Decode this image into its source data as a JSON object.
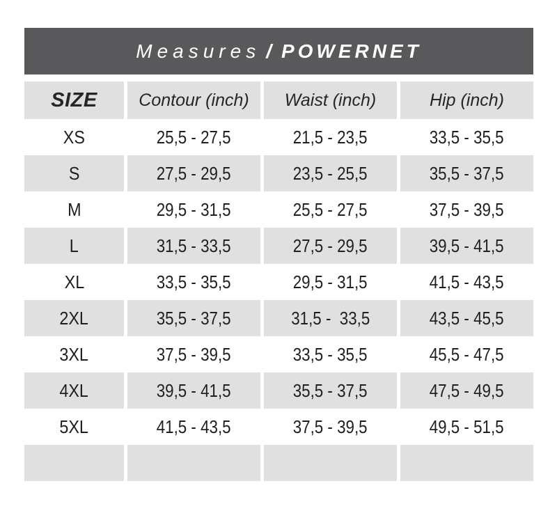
{
  "header_bar": {
    "label_left": "Measures",
    "separator": "/",
    "label_right": "POWERNET"
  },
  "table": {
    "columns": [
      "SIZE",
      "Contour (inch)",
      "Waist (inch)",
      "Hip (inch)"
    ],
    "rows": [
      {
        "size": "XS",
        "contour": "25,5 - 27,5",
        "waist": "21,5 - 23,5",
        "hip": "33,5 - 35,5"
      },
      {
        "size": "S",
        "contour": "27,5 - 29,5",
        "waist": "23,5 - 25,5",
        "hip": "35,5 - 37,5"
      },
      {
        "size": "M",
        "contour": "29,5 - 31,5",
        "waist": "25,5 - 27,5",
        "hip": "37,5 - 39,5"
      },
      {
        "size": "L",
        "contour": "31,5 - 33,5",
        "waist": "27,5 - 29,5",
        "hip": "39,5 - 41,5"
      },
      {
        "size": "XL",
        "contour": "33,5 - 35,5",
        "waist": "29,5 - 31,5",
        "hip": "41,5 - 43,5"
      },
      {
        "size": "2XL",
        "contour": "35,5 - 37,5",
        "waist": "31,5 -  33,5",
        "hip": "43,5 - 45,5"
      },
      {
        "size": "3XL",
        "contour": "37,5 - 39,5",
        "waist": "33,5 - 35,5",
        "hip": "45,5 - 47,5"
      },
      {
        "size": "4XL",
        "contour": "39,5 - 41,5",
        "waist": "35,5 - 37,5",
        "hip": "47,5 - 49,5"
      },
      {
        "size": "5XL",
        "contour": "41,5 - 43,5",
        "waist": "37,5 - 39,5",
        "hip": "49,5 - 51,5"
      },
      {
        "size": "",
        "contour": "",
        "waist": "",
        "hip": ""
      }
    ]
  },
  "colors": {
    "header_bar_bg": "#59595B",
    "alt_row_bg": "#E0E0E0",
    "text": "#1F1F1F",
    "header_bar_text": "#FFFFFF"
  },
  "chart_data": {
    "type": "table",
    "title": "Measures / POWERNET",
    "columns": [
      "SIZE",
      "Contour (inch)",
      "Waist (inch)",
      "Hip (inch)"
    ],
    "rows": [
      [
        "XS",
        "25,5 - 27,5",
        "21,5 - 23,5",
        "33,5 - 35,5"
      ],
      [
        "S",
        "27,5 - 29,5",
        "23,5 - 25,5",
        "35,5 - 37,5"
      ],
      [
        "M",
        "29,5 - 31,5",
        "25,5 - 27,5",
        "37,5 - 39,5"
      ],
      [
        "L",
        "31,5 - 33,5",
        "27,5 - 29,5",
        "39,5 - 41,5"
      ],
      [
        "XL",
        "33,5 - 35,5",
        "29,5 - 31,5",
        "41,5 - 43,5"
      ],
      [
        "2XL",
        "35,5 - 37,5",
        "31,5 - 33,5",
        "43,5 - 45,5"
      ],
      [
        "3XL",
        "37,5 - 39,5",
        "33,5 - 35,5",
        "45,5 - 47,5"
      ],
      [
        "4XL",
        "39,5 - 41,5",
        "35,5 - 37,5",
        "47,5 - 49,5"
      ],
      [
        "5XL",
        "41,5 - 43,5",
        "37,5 - 39,5",
        "49,5 - 51,5"
      ]
    ],
    "layout_hints": {
      "unit": "inch",
      "decimal_separator": "comma",
      "alternating_row_shading": true,
      "trailing_empty_row": true
    }
  }
}
